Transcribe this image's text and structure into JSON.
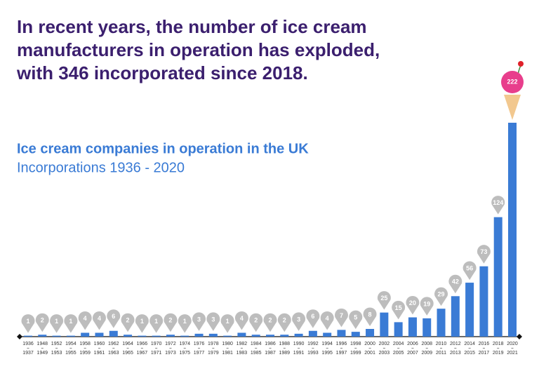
{
  "chart_data": {
    "type": "bar",
    "title": [
      "In recent years, the number of ice cream",
      "manufacturers in operation has exploded,",
      "with 346 incorporated since 2018."
    ],
    "subtitle": "Ice cream companies in operation in the UK",
    "subtitle2": "Incorporations 1936 - 2020",
    "categories": [
      [
        "1936",
        "1937"
      ],
      [
        "1948",
        "1949"
      ],
      [
        "1952",
        "1953"
      ],
      [
        "1954",
        "1955"
      ],
      [
        "1958",
        "1959"
      ],
      [
        "1960",
        "1961"
      ],
      [
        "1962",
        "1963"
      ],
      [
        "1964",
        "1965"
      ],
      [
        "1966",
        "1967"
      ],
      [
        "1970",
        "1971"
      ],
      [
        "1972",
        "1973"
      ],
      [
        "1974",
        "1975"
      ],
      [
        "1976",
        "1977"
      ],
      [
        "1978",
        "1979"
      ],
      [
        "1980",
        "1981"
      ],
      [
        "1982",
        "1983"
      ],
      [
        "1984",
        "1985"
      ],
      [
        "1986",
        "1987"
      ],
      [
        "1988",
        "1989"
      ],
      [
        "1990",
        "1991"
      ],
      [
        "1992",
        "1993"
      ],
      [
        "1994",
        "1995"
      ],
      [
        "1996",
        "1997"
      ],
      [
        "1998",
        "1999"
      ],
      [
        "2000",
        "2001"
      ],
      [
        "2002",
        "2003"
      ],
      [
        "2004",
        "2005"
      ],
      [
        "2006",
        "2007"
      ],
      [
        "2008",
        "2009"
      ],
      [
        "2010",
        "2011"
      ],
      [
        "2012",
        "2013"
      ],
      [
        "2014",
        "2015"
      ],
      [
        "2016",
        "2017"
      ],
      [
        "2018",
        "2019"
      ],
      [
        "2020",
        "2021"
      ]
    ],
    "values": [
      1,
      2,
      1,
      1,
      4,
      4,
      6,
      2,
      1,
      1,
      2,
      1,
      3,
      3,
      1,
      4,
      2,
      2,
      2,
      3,
      6,
      4,
      7,
      5,
      8,
      25,
      15,
      20,
      19,
      29,
      42,
      56,
      73,
      124,
      222
    ],
    "color": "#3a7bd5"
  }
}
